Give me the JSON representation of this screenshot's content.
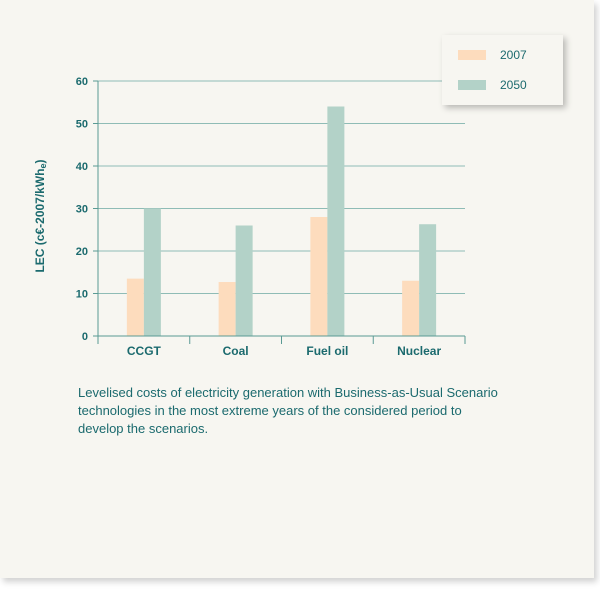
{
  "chart_data": {
    "type": "bar",
    "categories": [
      "CCGT",
      "Coal",
      "Fuel oil",
      "Nuclear"
    ],
    "series": [
      {
        "name": "2007",
        "values": [
          13.5,
          12.7,
          28,
          13
        ],
        "color": "#fddcbd"
      },
      {
        "name": "2050",
        "values": [
          30,
          26,
          54,
          26.3
        ],
        "color": "#b3d2c8"
      }
    ],
    "ylabel": "LEC (c€-2007/kWh",
    "ylabel_subscript": "e",
    "ylabel_suffix": ")",
    "ylim": [
      0,
      60
    ],
    "yticks": [
      0,
      10,
      20,
      30,
      40,
      50,
      60
    ],
    "grid": true,
    "legend_position": "top-right"
  },
  "caption": "Levelised costs of electricity generation with Business-as-Usual Scenario technologies in the most extreme years of the considered period to develop the scenarios.",
  "colors": {
    "text": "#1b6a6e",
    "grid": "#8fbcb6",
    "axis": "#5a9a94",
    "background": "#f7f6f1"
  }
}
